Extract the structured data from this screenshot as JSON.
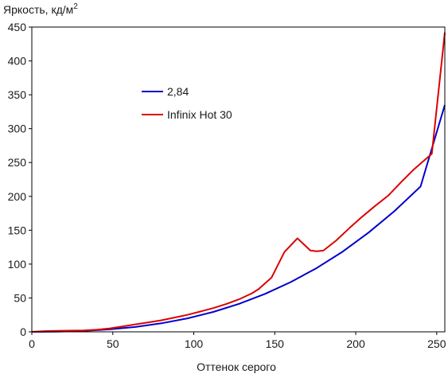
{
  "chart_data": {
    "type": "line",
    "title": "",
    "ylabel": "Яркость, кд/м",
    "ylabel_superscript": "2",
    "xlabel": "Оттенок серого",
    "xlim": [
      0,
      255
    ],
    "ylim": [
      0,
      450
    ],
    "xticks": [
      0,
      50,
      100,
      150,
      200,
      250
    ],
    "yticks": [
      0,
      50,
      100,
      150,
      200,
      250,
      300,
      350,
      400,
      450
    ],
    "grid": false,
    "legend_position": "upper-left-center",
    "series": [
      {
        "name": "2,84",
        "color": "#0000cc",
        "x": [
          0,
          16,
          32,
          48,
          64,
          80,
          96,
          112,
          128,
          144,
          160,
          176,
          192,
          208,
          224,
          240,
          255
        ],
        "y": [
          0,
          0.3,
          1.4,
          3.6,
          7.2,
          12.6,
          19.9,
          29.4,
          41.3,
          56.0,
          73.6,
          94.4,
          118.6,
          146.6,
          178.5,
          214.6,
          335
        ]
      },
      {
        "name": "Infinix Hot 30",
        "color": "#dd0000",
        "x": [
          0,
          8,
          16,
          32,
          40,
          48,
          56,
          64,
          72,
          80,
          88,
          96,
          104,
          112,
          120,
          128,
          136,
          140,
          148,
          156,
          164,
          172,
          176,
          180,
          188,
          196,
          204,
          212,
          220,
          228,
          236,
          247,
          255
        ],
        "y": [
          0,
          1,
          1.5,
          2,
          3,
          5,
          8,
          11,
          14,
          17,
          21,
          25,
          30,
          35,
          41,
          48,
          57,
          63,
          80,
          118,
          138,
          120,
          119,
          120,
          135,
          153,
          170,
          186,
          201,
          221,
          240,
          263,
          442
        ]
      }
    ]
  }
}
